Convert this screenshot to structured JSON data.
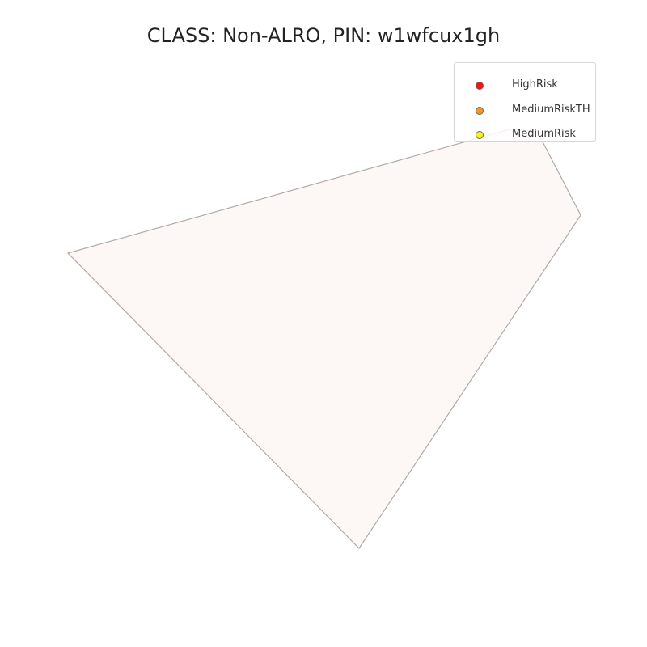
{
  "title": "CLASS: Non-ALRO, PIN: w1wfcux1gh",
  "map": {
    "parcel": {
      "fill": "#fdf8f5",
      "stroke": "#b0aaa8"
    }
  },
  "legend": {
    "items": [
      {
        "label": "HighRisk",
        "color": "#e8191a"
      },
      {
        "label": "MediumRiskTH",
        "color": "#f5961e"
      },
      {
        "label": "MediumRisk",
        "color": "#f5f51e"
      }
    ]
  }
}
